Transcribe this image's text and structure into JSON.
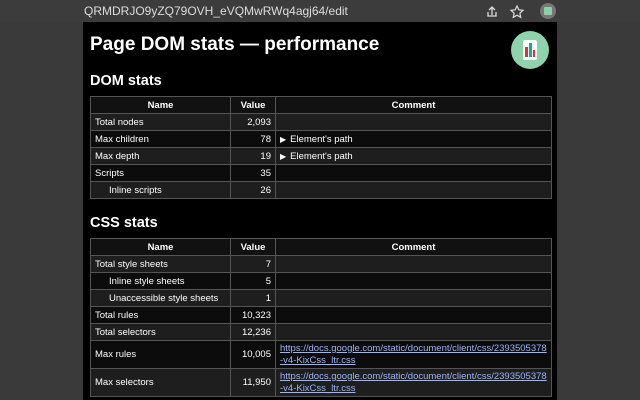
{
  "browser": {
    "url": "QRMDRJO9yZQ79OVH_eVQMwRWq4agj64/edit"
  },
  "page": {
    "title": "Page DOM stats — performance"
  },
  "sections": [
    {
      "heading": "DOM stats",
      "columns": [
        "Name",
        "Value",
        "Comment"
      ],
      "rows": [
        {
          "name": "Total nodes",
          "value": "2,093"
        },
        {
          "name": "Max children",
          "value": "78",
          "comment": "Element's path",
          "expandable": true
        },
        {
          "name": "Max depth",
          "value": "19",
          "comment": "Element's path",
          "expandable": true
        },
        {
          "name": "Scripts",
          "value": "35"
        },
        {
          "name": "Inline scripts",
          "value": "26",
          "indent": true
        }
      ]
    },
    {
      "heading": "CSS stats",
      "columns": [
        "Name",
        "Value",
        "Comment"
      ],
      "rows": [
        {
          "name": "Total style sheets",
          "value": "7"
        },
        {
          "name": "Inline style sheets",
          "value": "5",
          "indent": true
        },
        {
          "name": "Unaccessible style sheets",
          "value": "1",
          "indent": true
        },
        {
          "name": "Total rules",
          "value": "10,323"
        },
        {
          "name": "Total selectors",
          "value": "12,236"
        },
        {
          "name": "Max rules",
          "value": "10,005",
          "link": "https://docs.google.com/static/document/client/css/2393505378-v4-KixCss_ltr.css"
        },
        {
          "name": "Max selectors",
          "value": "11,950",
          "link": "https://docs.google.com/static/document/client/css/2393505378-v4-KixCss_ltr.css"
        }
      ]
    }
  ]
}
